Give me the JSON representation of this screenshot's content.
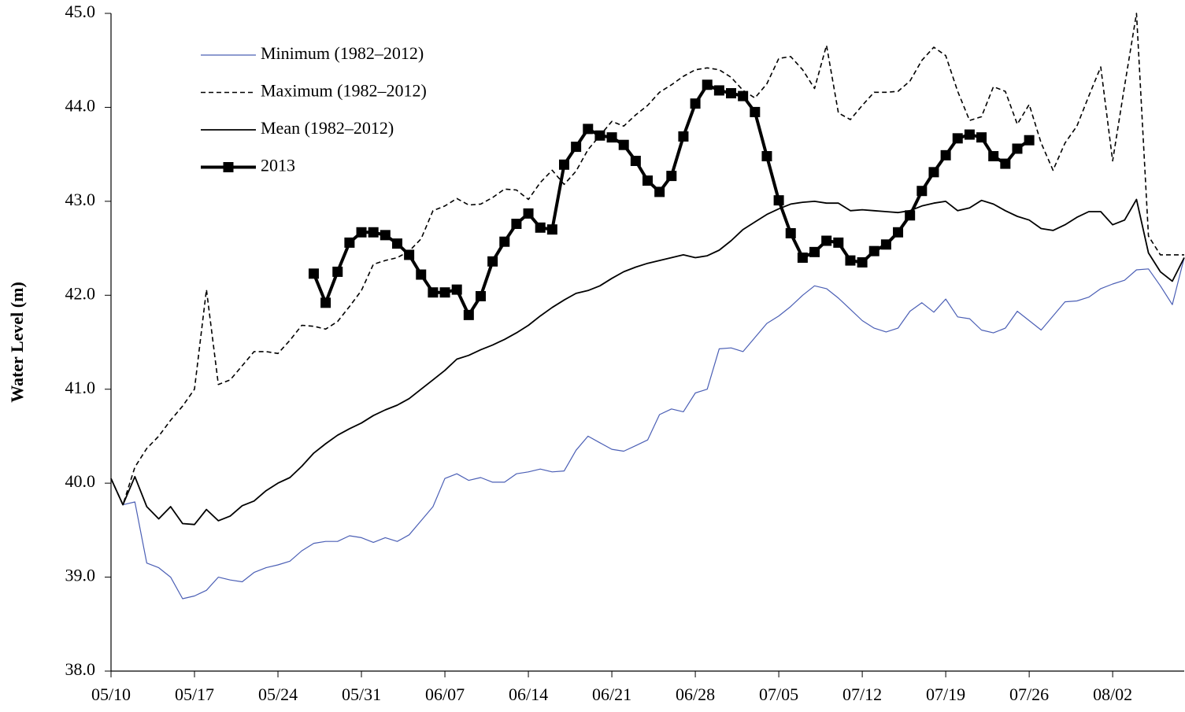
{
  "chart_data": {
    "type": "line",
    "y_label": "Water Level (m)",
    "legend": "upper left",
    "categories": [
      "05/10",
      null,
      null,
      null,
      null,
      null,
      null,
      "05/17",
      null,
      null,
      null,
      null,
      null,
      null,
      "05/24",
      null,
      null,
      null,
      null,
      null,
      null,
      "05/31",
      null,
      null,
      null,
      null,
      null,
      null,
      "06/07",
      null,
      null,
      null,
      null,
      null,
      null,
      "06/14",
      null,
      null,
      null,
      null,
      null,
      null,
      "06/21",
      null,
      null,
      null,
      null,
      null,
      null,
      "06/28",
      null,
      null,
      null,
      null,
      null,
      null,
      "07/05",
      null,
      null,
      null,
      null,
      null,
      null,
      "07/12",
      null,
      null,
      null,
      null,
      null,
      null,
      "07/19",
      null,
      null,
      null,
      null,
      null,
      null,
      "07/26",
      null,
      null,
      null,
      null,
      null,
      null,
      "08/02",
      null,
      null,
      null,
      null,
      null,
      null
    ],
    "ylim": [
      38,
      45
    ],
    "yticks": [
      {
        "value": 38,
        "label": "38.0"
      },
      {
        "value": 39,
        "label": "39.0"
      },
      {
        "value": 40,
        "label": "40.0"
      },
      {
        "value": 41,
        "label": "41.0"
      },
      {
        "value": 42,
        "label": "42.0"
      },
      {
        "value": 43,
        "label": "43.0"
      },
      {
        "value": 44,
        "label": "44.0"
      },
      {
        "value": 45,
        "label": "45.0"
      }
    ],
    "series": [
      {
        "name": "Minimum (1982–2012)",
        "color": "#4b5fb5",
        "line_style": "solid",
        "width": 1.2,
        "marker": "none",
        "values": [
          40.05,
          39.77,
          39.8,
          39.15,
          39.1,
          39.0,
          38.77,
          38.8,
          38.86,
          39.0,
          38.97,
          38.95,
          39.05,
          39.1,
          39.13,
          39.17,
          39.28,
          39.36,
          39.38,
          39.38,
          39.44,
          39.42,
          39.37,
          39.42,
          39.38,
          39.45,
          39.6,
          39.75,
          40.05,
          40.1,
          40.03,
          40.06,
          40.01,
          40.01,
          40.1,
          40.12,
          40.15,
          40.12,
          40.13,
          40.35,
          40.5,
          40.43,
          40.36,
          40.34,
          40.4,
          40.46,
          40.73,
          40.79,
          40.76,
          40.96,
          41.0,
          41.43,
          41.44,
          41.4,
          41.55,
          41.7,
          41.78,
          41.88,
          42.0,
          42.1,
          42.07,
          41.97,
          41.85,
          41.73,
          41.65,
          41.61,
          41.65,
          41.83,
          41.92,
          41.82,
          41.96,
          41.77,
          41.75,
          41.63,
          41.6,
          41.65,
          41.83,
          41.73,
          41.63,
          41.78,
          41.93,
          41.94,
          41.98,
          42.07,
          42.12,
          42.16,
          42.27,
          42.28,
          42.1,
          41.9,
          42.4
        ]
      },
      {
        "name": "Maximum (1982–2012)",
        "color": "#000000",
        "line_style": "dashed",
        "width": 1.6,
        "marker": "none",
        "values": [
          40.05,
          39.77,
          40.17,
          40.37,
          40.5,
          40.67,
          40.82,
          41.0,
          42.06,
          41.05,
          41.1,
          41.25,
          41.4,
          41.4,
          41.38,
          41.52,
          41.68,
          41.67,
          41.64,
          41.72,
          41.88,
          42.05,
          42.33,
          42.37,
          42.4,
          42.47,
          42.6,
          42.9,
          42.95,
          43.03,
          42.96,
          42.97,
          43.04,
          43.13,
          43.12,
          43.02,
          43.2,
          43.33,
          43.18,
          43.32,
          43.55,
          43.7,
          43.85,
          43.8,
          43.92,
          44.02,
          44.16,
          44.24,
          44.33,
          44.4,
          44.42,
          44.4,
          44.32,
          44.18,
          44.1,
          44.25,
          44.52,
          44.54,
          44.4,
          44.2,
          44.66,
          43.94,
          43.87,
          44.02,
          44.16,
          44.16,
          44.17,
          44.28,
          44.5,
          44.64,
          44.55,
          44.17,
          43.86,
          43.9,
          44.22,
          44.17,
          43.82,
          44.03,
          43.62,
          43.33,
          43.62,
          43.8,
          44.12,
          44.43,
          43.43,
          44.23,
          45.0,
          42.63,
          42.43,
          42.43,
          42.43
        ]
      },
      {
        "name": "Mean (1982–2012)",
        "color": "#000000",
        "line_style": "solid",
        "width": 1.8,
        "marker": "none",
        "values": [
          40.05,
          39.77,
          40.07,
          39.75,
          39.62,
          39.75,
          39.57,
          39.56,
          39.72,
          39.6,
          39.65,
          39.76,
          39.81,
          39.92,
          40.0,
          40.06,
          40.18,
          40.32,
          40.42,
          40.51,
          40.58,
          40.64,
          40.72,
          40.78,
          40.83,
          40.9,
          41.0,
          41.1,
          41.2,
          41.32,
          41.36,
          41.42,
          41.47,
          41.53,
          41.6,
          41.68,
          41.78,
          41.87,
          41.95,
          42.02,
          42.05,
          42.1,
          42.18,
          42.25,
          42.3,
          42.34,
          42.37,
          42.4,
          42.43,
          42.4,
          42.42,
          42.48,
          42.58,
          42.7,
          42.78,
          42.86,
          42.92,
          42.97,
          42.99,
          43.0,
          42.98,
          42.98,
          42.9,
          42.91,
          42.9,
          42.89,
          42.88,
          42.9,
          42.95,
          42.98,
          43.0,
          42.9,
          42.93,
          43.01,
          42.97,
          42.9,
          42.84,
          42.8,
          42.71,
          42.69,
          42.75,
          42.83,
          42.89,
          42.89,
          42.75,
          42.8,
          43.02,
          42.45,
          42.25,
          42.15,
          42.4
        ]
      },
      {
        "name": "2013",
        "color": "#000000",
        "line_style": "solid",
        "width": 4,
        "marker": "square",
        "values": [
          null,
          null,
          null,
          null,
          null,
          null,
          null,
          null,
          null,
          null,
          null,
          null,
          null,
          null,
          null,
          null,
          null,
          42.23,
          41.92,
          42.25,
          42.56,
          42.67,
          42.67,
          42.64,
          42.55,
          42.43,
          42.22,
          42.03,
          42.03,
          42.06,
          41.79,
          41.99,
          42.36,
          42.57,
          42.76,
          42.87,
          42.72,
          42.7,
          43.39,
          43.58,
          43.77,
          43.7,
          43.68,
          43.6,
          43.43,
          43.22,
          43.1,
          43.27,
          43.69,
          44.04,
          44.24,
          44.18,
          44.15,
          44.12,
          43.95,
          43.48,
          43.01,
          42.66,
          42.4,
          42.46,
          42.58,
          42.56,
          42.37,
          42.35,
          42.47,
          42.54,
          42.67,
          42.85,
          43.11,
          43.31,
          43.49,
          43.67,
          43.71,
          43.68,
          43.48,
          43.4,
          43.56,
          43.65,
          null,
          null,
          null,
          null,
          null,
          null,
          null,
          null,
          null,
          null,
          null,
          null,
          null
        ]
      }
    ]
  }
}
